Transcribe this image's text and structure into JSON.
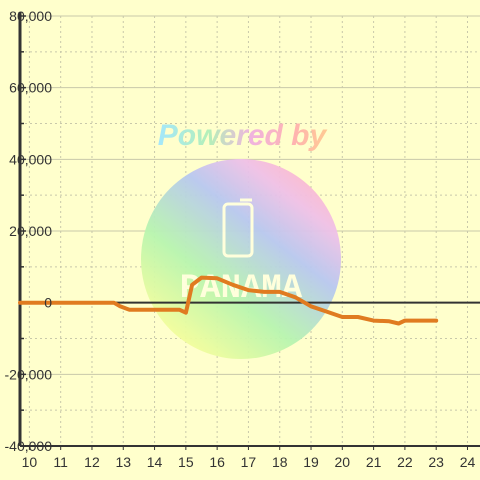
{
  "chart_data": {
    "type": "line",
    "title": "",
    "xlabel": "",
    "ylabel": "",
    "xlim": [
      9.7,
      24.4
    ],
    "ylim": [
      -40000,
      80000
    ],
    "x_ticks": [
      "10",
      "11",
      "12",
      "13",
      "14",
      "15",
      "16",
      "17",
      "18",
      "19",
      "20",
      "21",
      "22",
      "23",
      "24"
    ],
    "y_ticks": [
      "80,000",
      "60,000",
      "40,000",
      "20,000",
      "0",
      "-20,000",
      "-40,000"
    ],
    "grid": true,
    "legend": "none",
    "series": [
      {
        "color": "#e07b20",
        "x": [
          9.7,
          12.7,
          12.9,
          13.2,
          14.8,
          15.0,
          15.2,
          15.5,
          16.0,
          16.5,
          17.0,
          17.5,
          18.0,
          18.5,
          19.0,
          19.5,
          20.0,
          20.5,
          21.0,
          21.5,
          21.8,
          22.0,
          22.5,
          23.0
        ],
        "y": [
          0,
          0,
          -1000,
          -2000,
          -2000,
          -2800,
          5000,
          7000,
          6800,
          5000,
          3500,
          3000,
          3000,
          1500,
          -1000,
          -2500,
          -4000,
          -4000,
          -5000,
          -5200,
          -5800,
          -5000,
          -5000,
          -5000
        ]
      }
    ]
  },
  "watermark": {
    "text": "Powered by",
    "logo_text": "PANAMA"
  },
  "colors": {
    "background": "#ffffcc",
    "grid": "#c8c8aa",
    "axis": "#333333",
    "line": "#e07b20"
  }
}
